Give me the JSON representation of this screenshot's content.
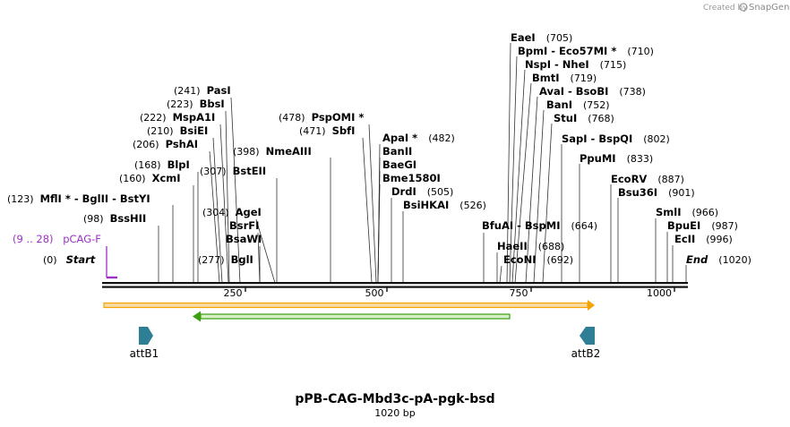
{
  "credit": {
    "prefix": "Created by",
    "brand": "SnapGene"
  },
  "map": {
    "title": "pPB-CAG-Mbd3c-pA-pgk-bsd",
    "length_label": "1020 bp"
  },
  "ruler": {
    "ticks": [
      {
        "value": 250,
        "label": "250"
      },
      {
        "value": 500,
        "label": "500"
      },
      {
        "value": 750,
        "label": "750"
      },
      {
        "value": 1000,
        "label": "1000"
      }
    ]
  },
  "sites_left": [
    {
      "pos": "(0)",
      "names": "Start"
    },
    {
      "pos": "(98)",
      "names": "BssHII"
    },
    {
      "pos": "(123)",
      "names": "MflI * - BglII - BstYI"
    },
    {
      "pos": "(160)",
      "names": "XcmI"
    },
    {
      "pos": "(168)",
      "names": "BlpI"
    },
    {
      "pos": "(206)",
      "names": "PshAI"
    },
    {
      "pos": "(210)",
      "names": "BsiEI"
    },
    {
      "pos": "(222)",
      "names": "MspA1I"
    },
    {
      "pos": "(223)",
      "names": "BbsI"
    },
    {
      "pos": "(241)",
      "names": "PasI"
    }
  ],
  "sites_mid": [
    {
      "pos": "(277)",
      "names": "BglI"
    },
    {
      "pos": "",
      "names": "BsaWI"
    },
    {
      "pos": "",
      "names": "BsrFI"
    },
    {
      "pos": "(304)",
      "names": "AgeI"
    },
    {
      "pos": "(307)",
      "names": "BstEII"
    },
    {
      "pos": "(398)",
      "names": "NmeAIII"
    },
    {
      "pos": "(471)",
      "names": "SbfI"
    },
    {
      "pos": "(478)",
      "names": "PspOMI *"
    },
    {
      "pos": "(482)",
      "names": "ApaI *"
    },
    {
      "pos": "",
      "names": "BanII"
    },
    {
      "pos": "",
      "names": "BaeGI"
    },
    {
      "pos": "",
      "names": "Bme1580I"
    },
    {
      "pos": "(505)",
      "names": "DrdI"
    },
    {
      "pos": "(526)",
      "names": "BsiHKAI"
    }
  ],
  "sites_right": [
    {
      "pos": "(705)",
      "names": "EaeI"
    },
    {
      "pos": "(710)",
      "names": "BpmI - Eco57MI *"
    },
    {
      "pos": "(715)",
      "names": "NspI - NheI"
    },
    {
      "pos": "(719)",
      "names": "BmtI"
    },
    {
      "pos": "(738)",
      "names": "AvaI - BsoBI"
    },
    {
      "pos": "(752)",
      "names": "BanI"
    },
    {
      "pos": "(768)",
      "names": "StuI"
    },
    {
      "pos": "(802)",
      "names": "SapI - BspQI"
    },
    {
      "pos": "(833)",
      "names": "PpuMI"
    },
    {
      "pos": "(887)",
      "names": "EcoRV"
    },
    {
      "pos": "(901)",
      "names": "Bsu36I"
    },
    {
      "pos": "(966)",
      "names": "SmlI"
    },
    {
      "pos": "(987)",
      "names": "BpuEI"
    },
    {
      "pos": "(996)",
      "names": "EcII"
    },
    {
      "pos": "(1020)",
      "names": "End"
    },
    {
      "pos": "(664)",
      "names": "BfuAI - BspMI"
    },
    {
      "pos": "(688)",
      "names": "HaeII"
    },
    {
      "pos": "(692)",
      "names": "EcoNI"
    }
  ],
  "primer": {
    "range": "(9 .. 28)",
    "name": "pCAG-F"
  },
  "features": [
    {
      "name": "attB1",
      "color": "#2e7f96"
    },
    {
      "name": "attB2",
      "color": "#2e7f96"
    }
  ],
  "colors": {
    "orf_orange": "#f4a300",
    "orf_green": "#3a9e0f",
    "primer": "#9b30c6"
  }
}
